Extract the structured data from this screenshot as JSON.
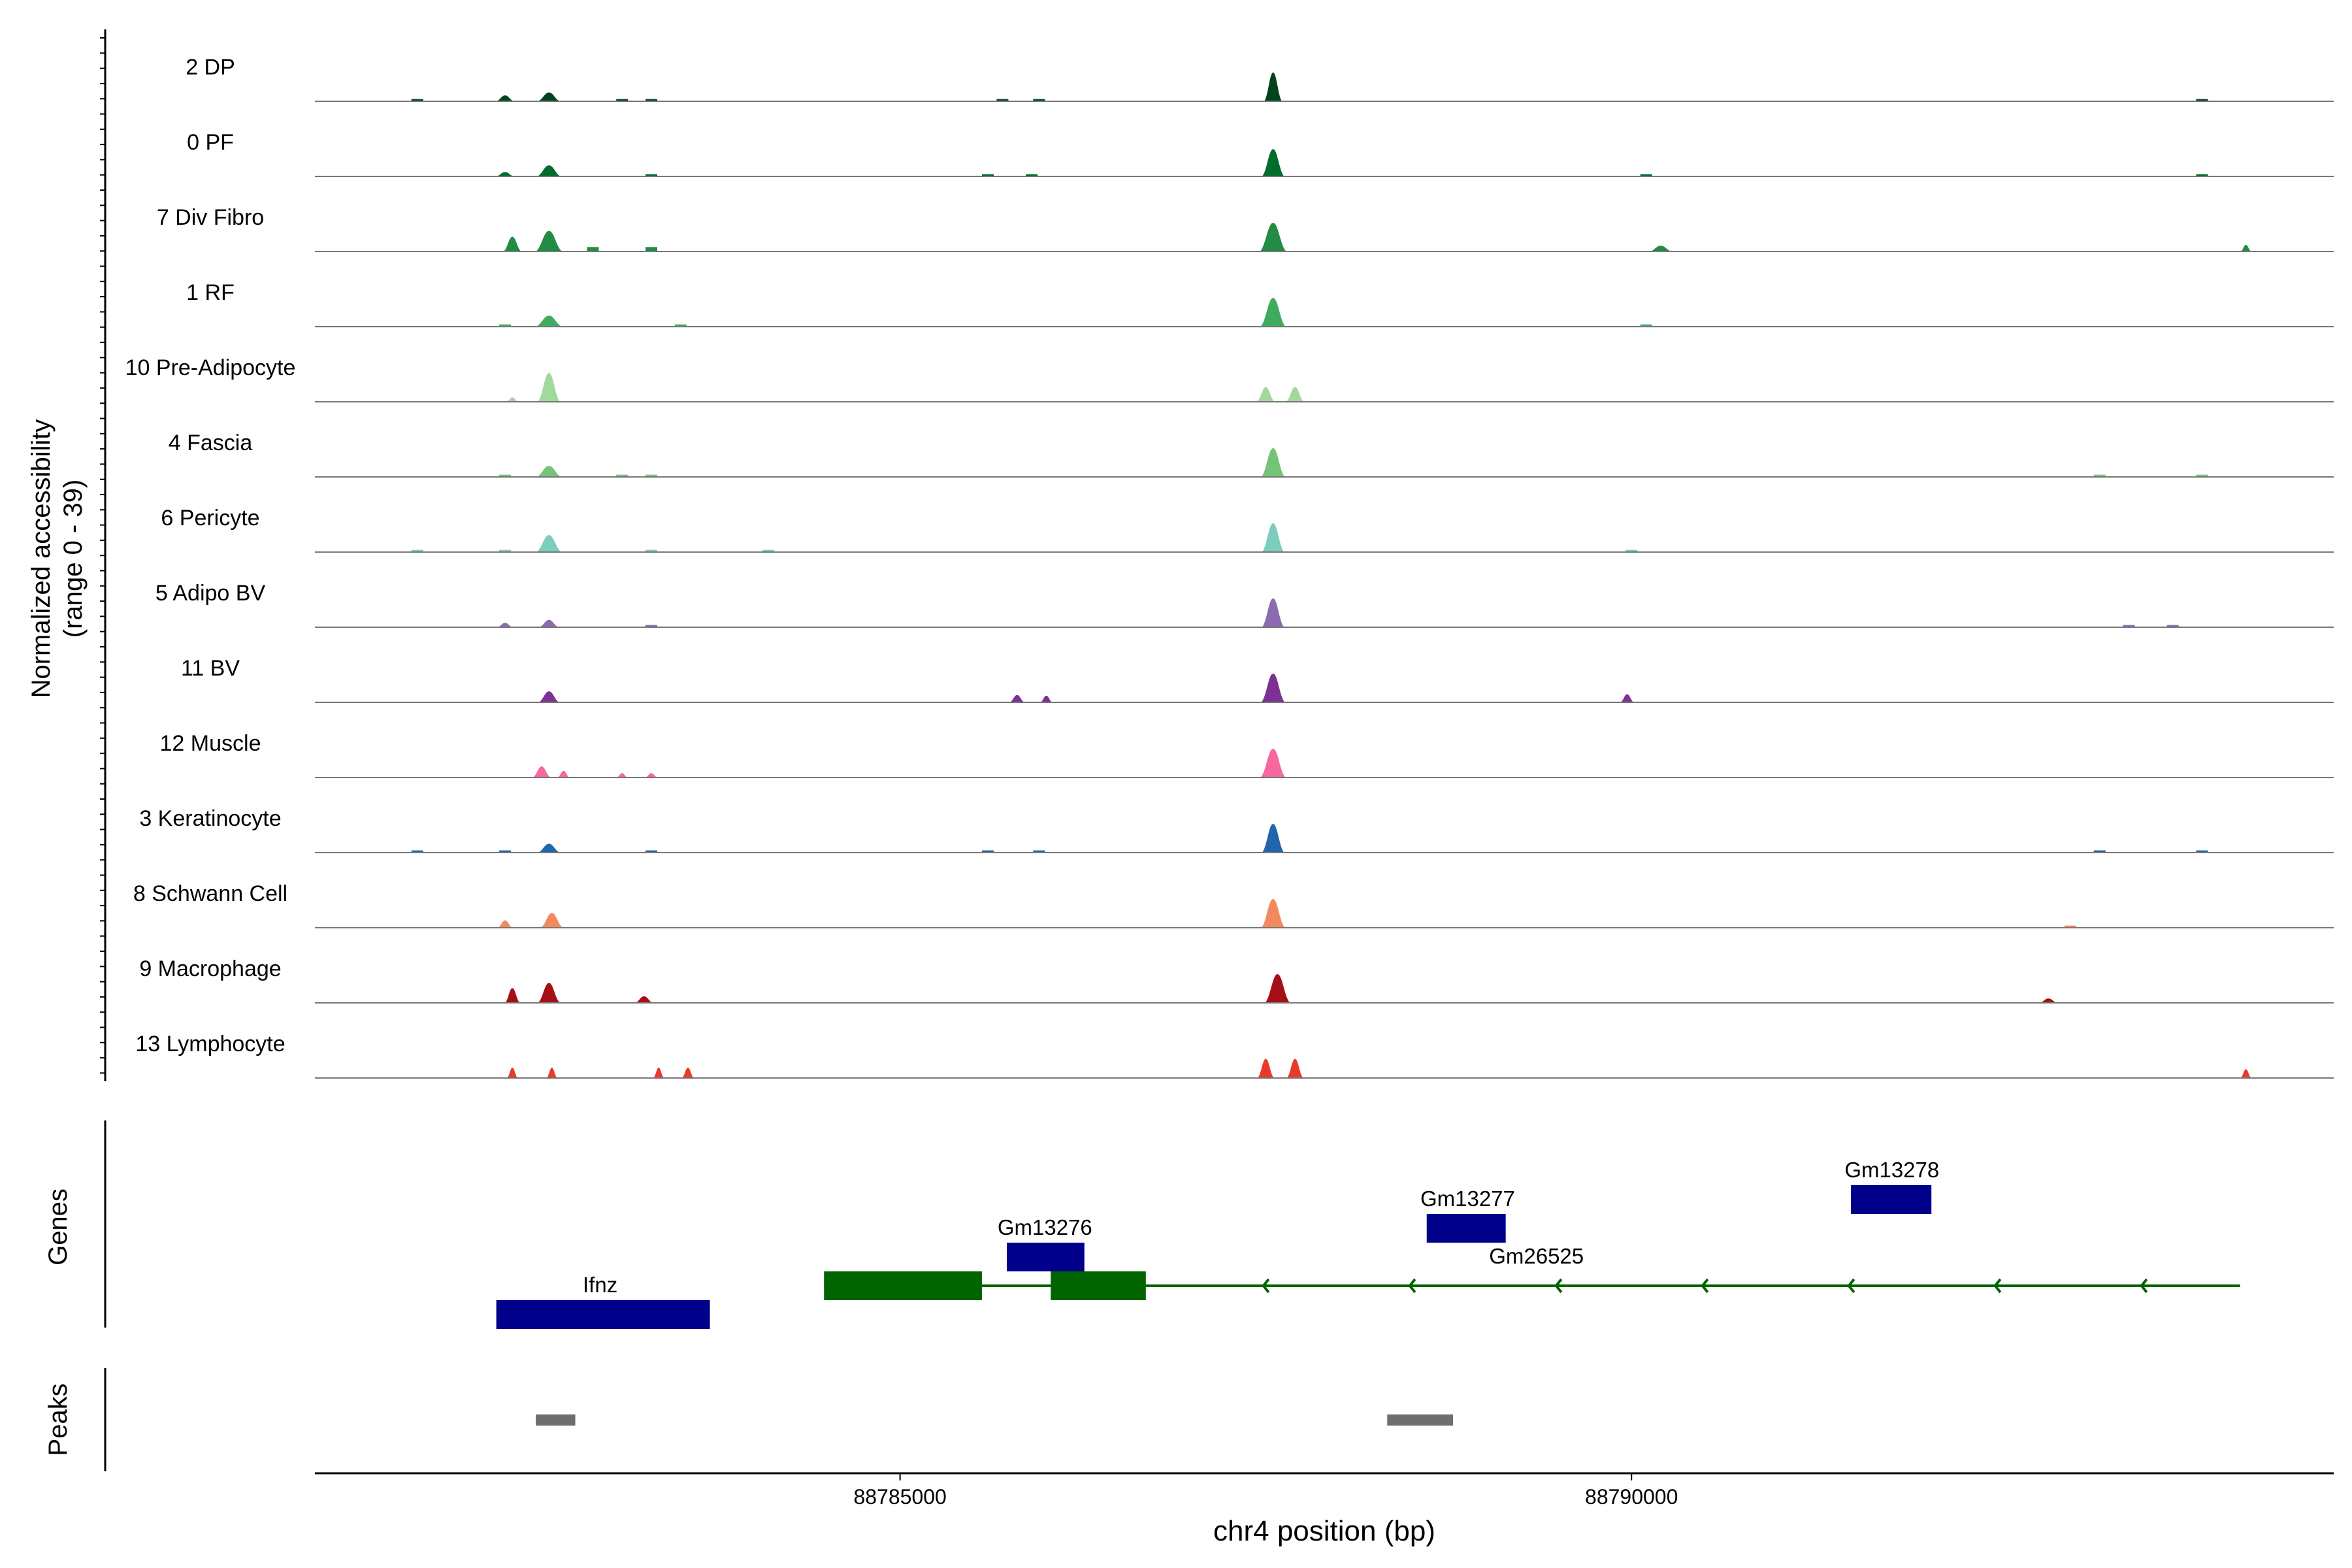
{
  "chart_data": {
    "type": "area",
    "subtype": "genome-coverage-tracks",
    "y_axis_title": "Normalized accessibility",
    "y_axis_subtitle": "(range 0 - 39)",
    "ylim": [
      0,
      39
    ],
    "x_axis_title": "chr4 position (bp)",
    "xlim": [
      88781000,
      88794800
    ],
    "x_ticks": [
      88785000,
      88790000
    ],
    "x_tick_labels": [
      "88785000",
      "88790000"
    ],
    "tracks": [
      {
        "name": "2 DP",
        "color": "#00441b",
        "peaks": [
          [
            88782300,
            120,
            8
          ],
          [
            88782600,
            150,
            12
          ],
          [
            88787550,
            120,
            39
          ]
        ],
        "small": [
          [
            88781700,
            3
          ],
          [
            88783100,
            3
          ],
          [
            88783300,
            3
          ],
          [
            88785700,
            3
          ],
          [
            88785950,
            3
          ],
          [
            88793900,
            3
          ]
        ]
      },
      {
        "name": "0 PF",
        "color": "#006d2c",
        "peaks": [
          [
            88782300,
            120,
            6
          ],
          [
            88782600,
            160,
            15
          ],
          [
            88787550,
            150,
            37
          ]
        ],
        "small": [
          [
            88783300,
            3
          ],
          [
            88785600,
            3
          ],
          [
            88785900,
            3
          ],
          [
            88790100,
            3
          ],
          [
            88793900,
            3
          ]
        ]
      },
      {
        "name": "7 Div Fibro",
        "color": "#238b45",
        "peaks": [
          [
            88782350,
            120,
            20
          ],
          [
            88782600,
            180,
            28
          ],
          [
            88787550,
            180,
            39
          ],
          [
            88790200,
            150,
            8
          ],
          [
            88794200,
            40,
            9
          ]
        ],
        "small": [
          [
            88782900,
            6
          ],
          [
            88783300,
            6
          ]
        ]
      },
      {
        "name": "1 RF",
        "color": "#41ab5d",
        "peaks": [
          [
            88782600,
            180,
            15
          ],
          [
            88787550,
            170,
            39
          ]
        ],
        "small": [
          [
            88782300,
            3
          ],
          [
            88783500,
            3
          ],
          [
            88790100,
            3
          ]
        ]
      },
      {
        "name": "10 Pre-Adipocyte",
        "color": "#a1d99b",
        "peaks": [
          [
            88782350,
            80,
            6
          ],
          [
            88782600,
            150,
            39
          ],
          [
            88787500,
            120,
            20
          ],
          [
            88787700,
            120,
            20
          ]
        ],
        "small": []
      },
      {
        "name": "4 Fascia",
        "color": "#74c476",
        "peaks": [
          [
            88782600,
            170,
            15
          ],
          [
            88787550,
            160,
            39
          ]
        ],
        "small": [
          [
            88782300,
            3
          ],
          [
            88783100,
            3
          ],
          [
            88783300,
            3
          ],
          [
            88793200,
            3
          ],
          [
            88793900,
            3
          ]
        ]
      },
      {
        "name": "6 Pericyte",
        "color": "#7ccdbb",
        "peaks": [
          [
            88782600,
            170,
            23
          ],
          [
            88787550,
            150,
            39
          ]
        ],
        "small": [
          [
            88781700,
            3
          ],
          [
            88782300,
            3
          ],
          [
            88783300,
            3
          ],
          [
            88784100,
            3
          ],
          [
            88790000,
            3
          ]
        ]
      },
      {
        "name": "5 Adipo BV",
        "color": "#8c6bb1",
        "peaks": [
          [
            88782300,
            100,
            6
          ],
          [
            88782600,
            130,
            10
          ],
          [
            88787550,
            150,
            39
          ]
        ],
        "small": [
          [
            88783300,
            3
          ],
          [
            88793400,
            3
          ],
          [
            88793700,
            3
          ]
        ]
      },
      {
        "name": "11 BV",
        "color": "#7b3294",
        "peaks": [
          [
            88782600,
            140,
            15
          ],
          [
            88785800,
            100,
            10
          ],
          [
            88786000,
            80,
            9
          ],
          [
            88787550,
            160,
            39
          ],
          [
            88789970,
            90,
            11
          ]
        ],
        "small": []
      },
      {
        "name": "12 Muscle",
        "color": "#f768a1",
        "peaks": [
          [
            88782550,
            120,
            15
          ],
          [
            88782700,
            80,
            9
          ],
          [
            88783100,
            70,
            6
          ],
          [
            88783300,
            80,
            6
          ],
          [
            88787550,
            170,
            39
          ]
        ],
        "small": []
      },
      {
        "name": "3 Keratinocyte",
        "color": "#2166ac",
        "peaks": [
          [
            88782600,
            150,
            12
          ],
          [
            88787550,
            150,
            39
          ]
        ],
        "small": [
          [
            88781700,
            3
          ],
          [
            88782300,
            3
          ],
          [
            88783300,
            3
          ],
          [
            88785600,
            3
          ],
          [
            88785950,
            3
          ],
          [
            88793200,
            3
          ],
          [
            88793900,
            3
          ]
        ]
      },
      {
        "name": "8 Schwann Cell",
        "color": "#f4895f",
        "peaks": [
          [
            88782300,
            100,
            10
          ],
          [
            88782620,
            150,
            20
          ],
          [
            88787550,
            160,
            39
          ]
        ],
        "small": [
          [
            88793000,
            3
          ]
        ]
      },
      {
        "name": "9 Macrophage",
        "color": "#a50f15",
        "peaks": [
          [
            88782350,
            100,
            20
          ],
          [
            88782600,
            150,
            27
          ],
          [
            88783250,
            120,
            9
          ],
          [
            88787580,
            170,
            39
          ],
          [
            88792850,
            120,
            6
          ]
        ],
        "small": []
      },
      {
        "name": "13 Lymphocyte",
        "color": "#e8392b",
        "peaks": [
          [
            88782350,
            60,
            14
          ],
          [
            88782620,
            70,
            14
          ],
          [
            88783350,
            70,
            14
          ],
          [
            88783550,
            80,
            14
          ],
          [
            88787500,
            110,
            26
          ],
          [
            88787700,
            110,
            26
          ],
          [
            88794200,
            40,
            12
          ]
        ],
        "small": []
      }
    ],
    "genes_label": "Genes",
    "genes": [
      {
        "name": "Ifnz",
        "start": 88782240,
        "end": 88783700,
        "row": 0,
        "color": "#00008b",
        "label_x": 88782950
      },
      {
        "name": "Gm13276",
        "start": 88785730,
        "end": 88786260,
        "row": 2,
        "color": "#00008b",
        "label_x": 88785990
      },
      {
        "name": "Gm13277",
        "start": 88788600,
        "end": 88789140,
        "row": 3,
        "color": "#00008b",
        "label_x": 88788880
      },
      {
        "name": "Gm13278",
        "start": 88791500,
        "end": 88792050,
        "row": 4,
        "color": "#00008b",
        "label_x": 88791780
      },
      {
        "name": "Gm26525",
        "start": 88784480,
        "end": 88794160,
        "row": 1,
        "color": "#006400",
        "label_x": 88789350,
        "exons": [
          [
            88784480,
            88785560
          ],
          [
            88786030,
            88786680
          ]
        ]
      }
    ],
    "peaks_label": "Peaks",
    "peak_regions": [
      [
        88782510,
        88782780
      ],
      [
        88788330,
        88788780
      ]
    ]
  }
}
